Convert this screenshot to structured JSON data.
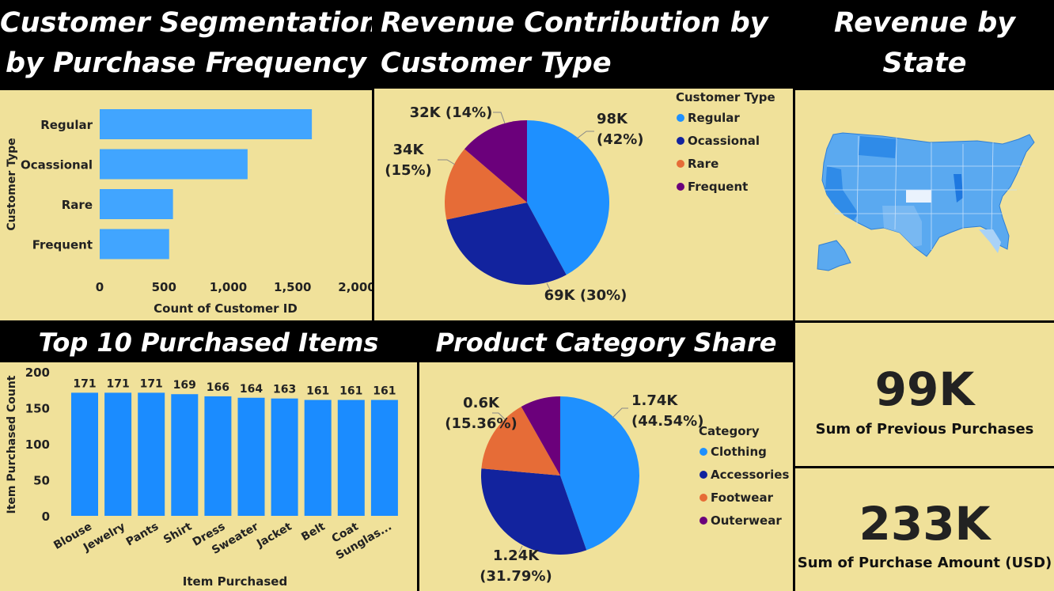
{
  "titles": {
    "segmentation": [
      "Customer Segmentation",
      "by Purchase Frequency"
    ],
    "revenue_type": [
      "Revenue Contribution by",
      "Customer Type"
    ],
    "revenue_state": [
      "Revenue by",
      "State"
    ],
    "top_items": "Top 10 Purchased Items",
    "category_share": "Product Category Share"
  },
  "kpis": [
    {
      "value": "99K",
      "label": "Sum of Previous Purchases"
    },
    {
      "value": "233K",
      "label": "Sum of Purchase Amount (USD)"
    }
  ],
  "colors": {
    "bar": "#41a5ff",
    "bar2": "#1b8cff",
    "regular": "#1e90ff",
    "ocassional": "#12239e",
    "rare": "#e66c37",
    "frequent": "#6b007b",
    "panel": "#f0e19a",
    "map": "#5aa9f0"
  },
  "map": {
    "icon": "usa-map-icon"
  },
  "chart_data": [
    {
      "type": "bar",
      "orientation": "horizontal",
      "categories": [
        "Regular",
        "Ocassional",
        "Rare",
        "Frequent"
      ],
      "values": [
        1650,
        1150,
        570,
        540
      ],
      "xlabel": "Count of Customer ID",
      "ylabel": "Customer Type",
      "xlim": [
        0,
        2000
      ],
      "xticks": [
        "0",
        "500",
        "1,000",
        "1,500",
        "2,000"
      ]
    },
    {
      "type": "pie",
      "legend_title": "Customer Type",
      "legend_position": "right",
      "labels": [
        "Regular",
        "Ocassional",
        "Rare",
        "Frequent"
      ],
      "values": [
        98,
        69,
        34,
        32
      ],
      "data_labels": [
        "98K (42%)",
        "69K (30%)",
        "34K (15%)",
        "32K (14%)"
      ]
    },
    {
      "type": "bar",
      "categories": [
        "Blouse",
        "Jewelry",
        "Pants",
        "Shirt",
        "Dress",
        "Sweater",
        "Jacket",
        "Belt",
        "Coat",
        "Sunglas..."
      ],
      "values": [
        171,
        171,
        171,
        169,
        166,
        164,
        163,
        161,
        161,
        161
      ],
      "xlabel": "Item Purchased",
      "ylabel": "Item Purchased Count",
      "ylim": [
        0,
        200
      ],
      "yticks": [
        "0",
        "50",
        "100",
        "150",
        "200"
      ]
    },
    {
      "type": "pie",
      "legend_title": "Category",
      "legend_position": "right",
      "labels": [
        "Clothing",
        "Accessories",
        "Footwear",
        "Outerwear"
      ],
      "values": [
        1.74,
        1.24,
        0.6,
        0.32
      ],
      "data_labels": [
        "1.74K (44.54%)",
        "1.24K (31.79%)",
        "0.6K (15.36%)",
        ""
      ]
    }
  ]
}
